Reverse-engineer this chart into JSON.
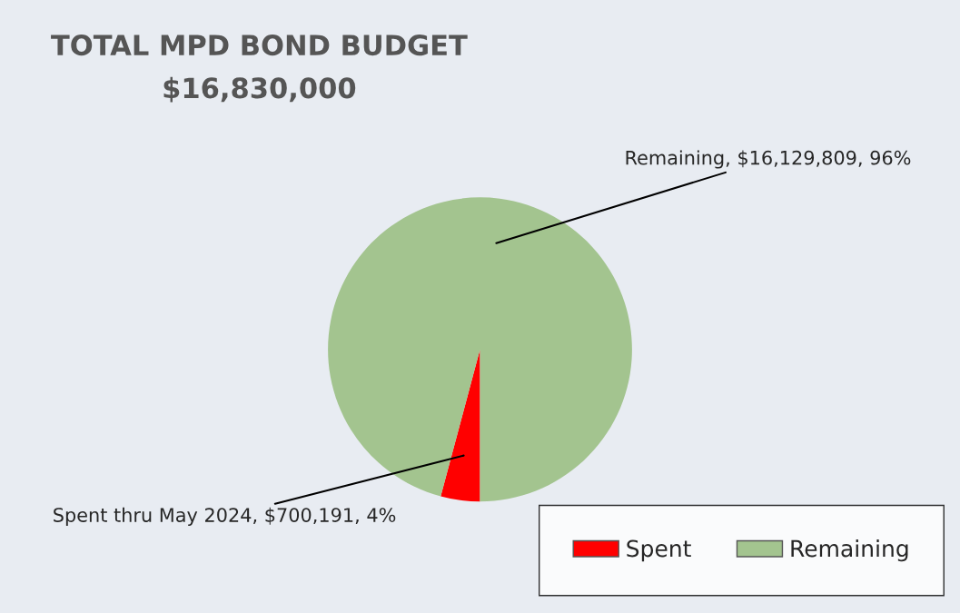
{
  "chart_data": {
    "type": "pie",
    "title": "TOTAL MPD BOND BUDGET",
    "subtitle": "$16,830,000",
    "categories": [
      "Spent",
      "Remaining"
    ],
    "values": [
      700191,
      16129809
    ],
    "colors": [
      "#ff0000",
      "#a3c48f"
    ],
    "value_labels": [
      "Spent thru May 2024, $700,191, 4%",
      "Remaining, $16,129,809, 96%"
    ],
    "legend": "bottom right"
  }
}
